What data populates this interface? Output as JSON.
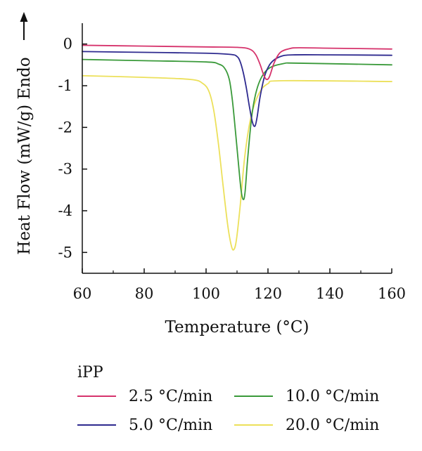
{
  "chart_data": {
    "type": "line",
    "xlabel": "Temperature (°C)",
    "ylabel": "Heat Flow (mW/g) Endo",
    "xlim": [
      60,
      160
    ],
    "ylim": [
      -5.5,
      0.5
    ],
    "xticks": [
      60,
      80,
      100,
      120,
      140,
      160
    ],
    "yticks": [
      0,
      -1,
      -2,
      -3,
      -4,
      -5
    ],
    "grid": false,
    "legend": {
      "title": "iPP",
      "placement": "bottom"
    },
    "series": [
      {
        "name": "2.5 °C/min",
        "color": "#d6336c",
        "x": [
          60,
          80,
          100,
          110,
          114,
          116,
          117.5,
          118.5,
          119.5,
          120.5,
          122,
          124,
          127,
          130,
          140,
          160
        ],
        "y": [
          -0.03,
          -0.05,
          -0.07,
          -0.08,
          -0.12,
          -0.25,
          -0.5,
          -0.72,
          -0.85,
          -0.78,
          -0.45,
          -0.2,
          -0.11,
          -0.09,
          -0.1,
          -0.12
        ]
      },
      {
        "name": "5.0 °C/min",
        "color": "#2e2a8f",
        "x": [
          60,
          80,
          100,
          108,
          110,
          111,
          112,
          113,
          114,
          115,
          115.8,
          116.5,
          117.5,
          119,
          121,
          124,
          128,
          140,
          160
        ],
        "y": [
          -0.18,
          -0.2,
          -0.22,
          -0.25,
          -0.3,
          -0.42,
          -0.68,
          -1.05,
          -1.5,
          -1.88,
          -1.97,
          -1.75,
          -1.25,
          -0.75,
          -0.45,
          -0.3,
          -0.26,
          -0.26,
          -0.27
        ]
      },
      {
        "name": "10.0 °C/min",
        "color": "#3a9a3a",
        "x": [
          60,
          80,
          100,
          104,
          106,
          107.5,
          108.5,
          109.5,
          110.5,
          111.3,
          112,
          112.6,
          113.5,
          115,
          117,
          120,
          125,
          130,
          160
        ],
        "y": [
          -0.37,
          -0.4,
          -0.43,
          -0.48,
          -0.58,
          -0.85,
          -1.35,
          -2.1,
          -2.9,
          -3.5,
          -3.73,
          -3.55,
          -2.7,
          -1.6,
          -0.95,
          -0.6,
          -0.47,
          -0.46,
          -0.5
        ]
      },
      {
        "name": "20.0 °C/min",
        "color": "#ece05a",
        "x": [
          60,
          80,
          95,
          99,
          101,
          102.5,
          104,
          105.5,
          107,
          108.2,
          109,
          109.8,
          111,
          112.5,
          114.5,
          117,
          120,
          125,
          160
        ],
        "y": [
          -0.76,
          -0.8,
          -0.85,
          -0.95,
          -1.15,
          -1.6,
          -2.4,
          -3.4,
          -4.35,
          -4.85,
          -4.93,
          -4.7,
          -3.9,
          -2.7,
          -1.75,
          -1.2,
          -0.95,
          -0.88,
          -0.9
        ]
      }
    ]
  }
}
